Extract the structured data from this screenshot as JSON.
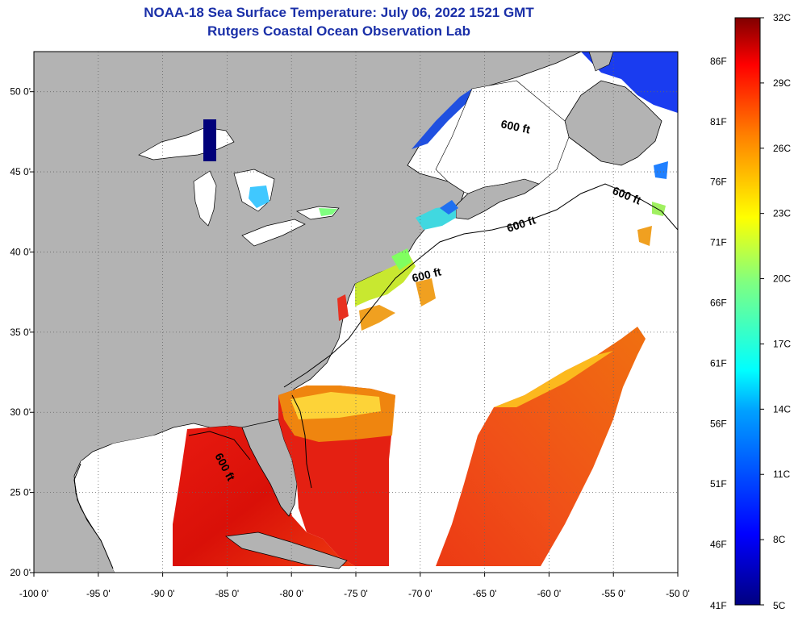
{
  "title": "NOAA-18 Sea Surface Temperature:  July 06, 2022 1521 GMT",
  "subtitle": "Rutgers Coastal Ocean Observation Lab",
  "map": {
    "lon_ticks": [
      "-100 0'",
      "-95 0'",
      "-90 0'",
      "-85 0'",
      "-80 0'",
      "-75 0'",
      "-70 0'",
      "-65 0'",
      "-60 0'",
      "-55 0'",
      "-50 0'"
    ],
    "lon_values": [
      -100,
      -95,
      -90,
      -85,
      -80,
      -75,
      -70,
      -65,
      -60,
      -55,
      -50
    ],
    "lat_ticks": [
      "20 0'",
      "25 0'",
      "30 0'",
      "35 0'",
      "40 0'",
      "45 0'",
      "50 0'"
    ],
    "lat_values": [
      20,
      25,
      30,
      35,
      40,
      45,
      50
    ],
    "lon_range": [
      -100,
      -50
    ],
    "lat_range": [
      20,
      52.5
    ],
    "grid": "dotted",
    "contour_label": "600 ft",
    "land_color": "#b3b3b3",
    "cloud_color": "#ffffff"
  },
  "colorbar": {
    "celsius_labels": [
      "32C",
      "29C",
      "26C",
      "23C",
      "20C",
      "17C",
      "14C",
      "11C",
      "8C",
      "5C"
    ],
    "fahrenheit_labels": [
      "86F",
      "81F",
      "76F",
      "71F",
      "66F",
      "61F",
      "56F",
      "51F",
      "46F",
      "41F"
    ],
    "celsius_range": [
      5,
      32
    ],
    "colors": [
      "#000080",
      "#0000ff",
      "#0080ff",
      "#00ffff",
      "#80ff80",
      "#ffff00",
      "#ff8000",
      "#ff0000",
      "#800000"
    ]
  }
}
